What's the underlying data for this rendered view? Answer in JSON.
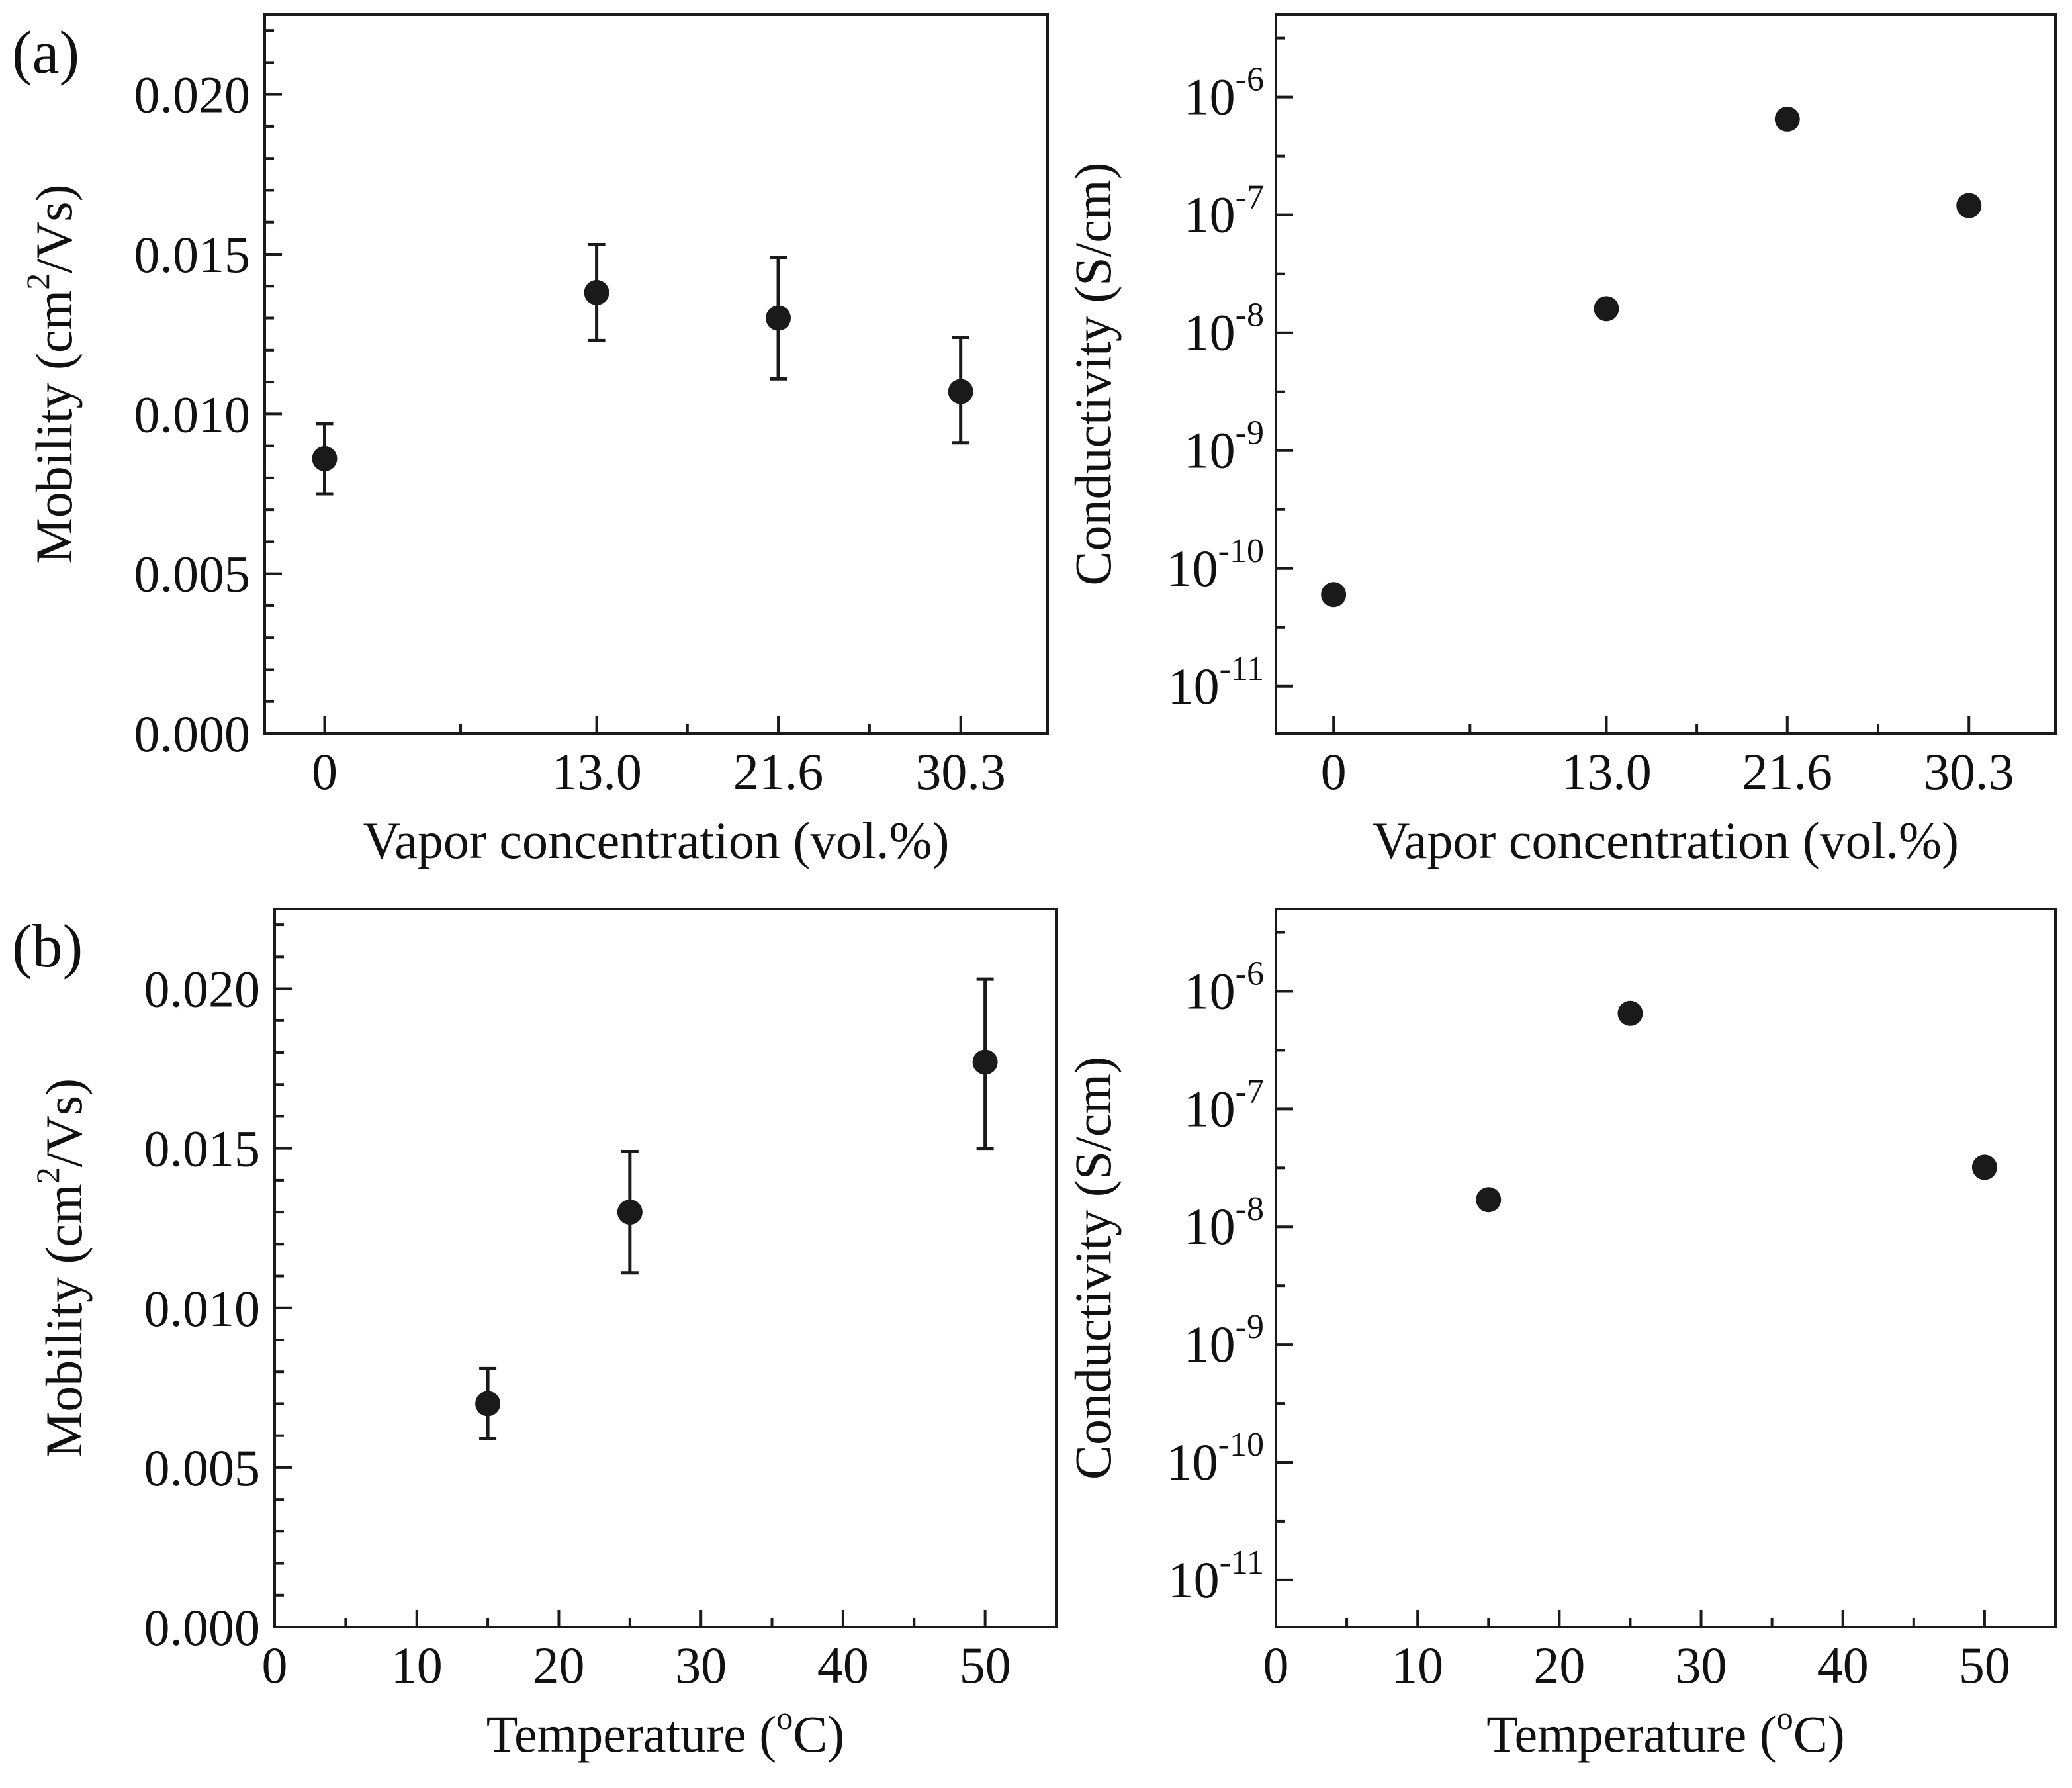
{
  "panel_labels": [
    "(a)",
    "(b)"
  ],
  "chart_data": [
    {
      "type": "scatter",
      "panel": "(a)",
      "xlabel": "Vapor concentration (vol.%)",
      "ylabel": "Mobility (cm²/Vs)",
      "ylabel_parts": {
        "pre": "Mobility (cm",
        "sup": "2",
        "post": "/Vs)"
      },
      "x_categories": [
        "0",
        "13.0",
        "21.6",
        "30.3"
      ],
      "x_scale": "categorical",
      "yscale": "linear",
      "ylim": [
        0,
        0.0225
      ],
      "y_ticks": [
        0.0,
        0.005,
        0.01,
        0.015,
        0.02
      ],
      "y_tick_labels": [
        "0.000",
        "0.005",
        "0.010",
        "0.015",
        "0.020"
      ],
      "y_minor_step": 0.001,
      "points": [
        {
          "x": "0",
          "y": 0.0086,
          "err_low": 0.0075,
          "err_high": 0.0097
        },
        {
          "x": "13.0",
          "y": 0.0138,
          "err_low": 0.0123,
          "err_high": 0.0153
        },
        {
          "x": "21.6",
          "y": 0.013,
          "err_low": 0.0111,
          "err_high": 0.0149
        },
        {
          "x": "30.3",
          "y": 0.0107,
          "err_low": 0.0091,
          "err_high": 0.0124
        }
      ]
    },
    {
      "type": "scatter",
      "panel": "(a)-right",
      "xlabel": "Vapor concentration (vol.%)",
      "ylabel": "Conductivity (S/cm)",
      "x_categories": [
        "0",
        "13.0",
        "21.6",
        "30.3"
      ],
      "x_scale": "categorical",
      "yscale": "log",
      "ylim_exp": [
        -11.4,
        -5.3
      ],
      "y_tick_exponents": [
        -11,
        -10,
        -9,
        -8,
        -7,
        -6
      ],
      "y_tick_labels": [
        "10-11",
        "10-10",
        "10-9",
        "10-8",
        "10-7",
        "10-6"
      ],
      "points": [
        {
          "x": "0",
          "y": 6e-11
        },
        {
          "x": "13.0",
          "y": 1.6e-08
        },
        {
          "x": "21.6",
          "y": 6.5e-07
        },
        {
          "x": "30.3",
          "y": 1.2e-07
        }
      ]
    },
    {
      "type": "scatter",
      "panel": "(b)",
      "xlabel": "Temperature (°C)",
      "xlabel_parts": {
        "pre": "Temperature (",
        "sup": "o",
        "post": "C)"
      },
      "ylabel": "Mobility (cm²/Vs)",
      "ylabel_parts": {
        "pre": "Mobility (cm",
        "sup": "2",
        "post": "/Vs)"
      },
      "xlim": [
        0,
        55
      ],
      "x_ticks": [
        0,
        10,
        20,
        30,
        40,
        50
      ],
      "x_tick_labels": [
        "0",
        "10",
        "20",
        "30",
        "40",
        "50"
      ],
      "yscale": "linear",
      "ylim": [
        0,
        0.0225
      ],
      "y_ticks": [
        0.0,
        0.005,
        0.01,
        0.015,
        0.02
      ],
      "y_tick_labels": [
        "0.000",
        "0.005",
        "0.010",
        "0.015",
        "0.020"
      ],
      "y_minor_step": 0.001,
      "points": [
        {
          "x": 15,
          "y": 0.007,
          "err_low": 0.0059,
          "err_high": 0.0081
        },
        {
          "x": 25,
          "y": 0.013,
          "err_low": 0.0111,
          "err_high": 0.0149
        },
        {
          "x": 50,
          "y": 0.0177,
          "err_low": 0.015,
          "err_high": 0.0203
        }
      ]
    },
    {
      "type": "scatter",
      "panel": "(b)-right",
      "xlabel": "Temperature (°C)",
      "xlabel_parts": {
        "pre": "Temperature (",
        "sup": "o",
        "post": "C)"
      },
      "ylabel": "Conductivity (S/cm)",
      "xlim": [
        0,
        55
      ],
      "x_ticks": [
        0,
        10,
        20,
        30,
        40,
        50
      ],
      "x_tick_labels": [
        "0",
        "10",
        "20",
        "30",
        "40",
        "50"
      ],
      "yscale": "log",
      "ylim_exp": [
        -11.4,
        -5.3
      ],
      "y_tick_exponents": [
        -11,
        -10,
        -9,
        -8,
        -7,
        -6
      ],
      "y_tick_labels": [
        "10-11",
        "10-10",
        "10-9",
        "10-8",
        "10-7",
        "10-6"
      ],
      "points": [
        {
          "x": 15,
          "y": 1.7e-08
        },
        {
          "x": 25,
          "y": 6.5e-07
        },
        {
          "x": 50,
          "y": 3.2e-08
        }
      ]
    }
  ]
}
